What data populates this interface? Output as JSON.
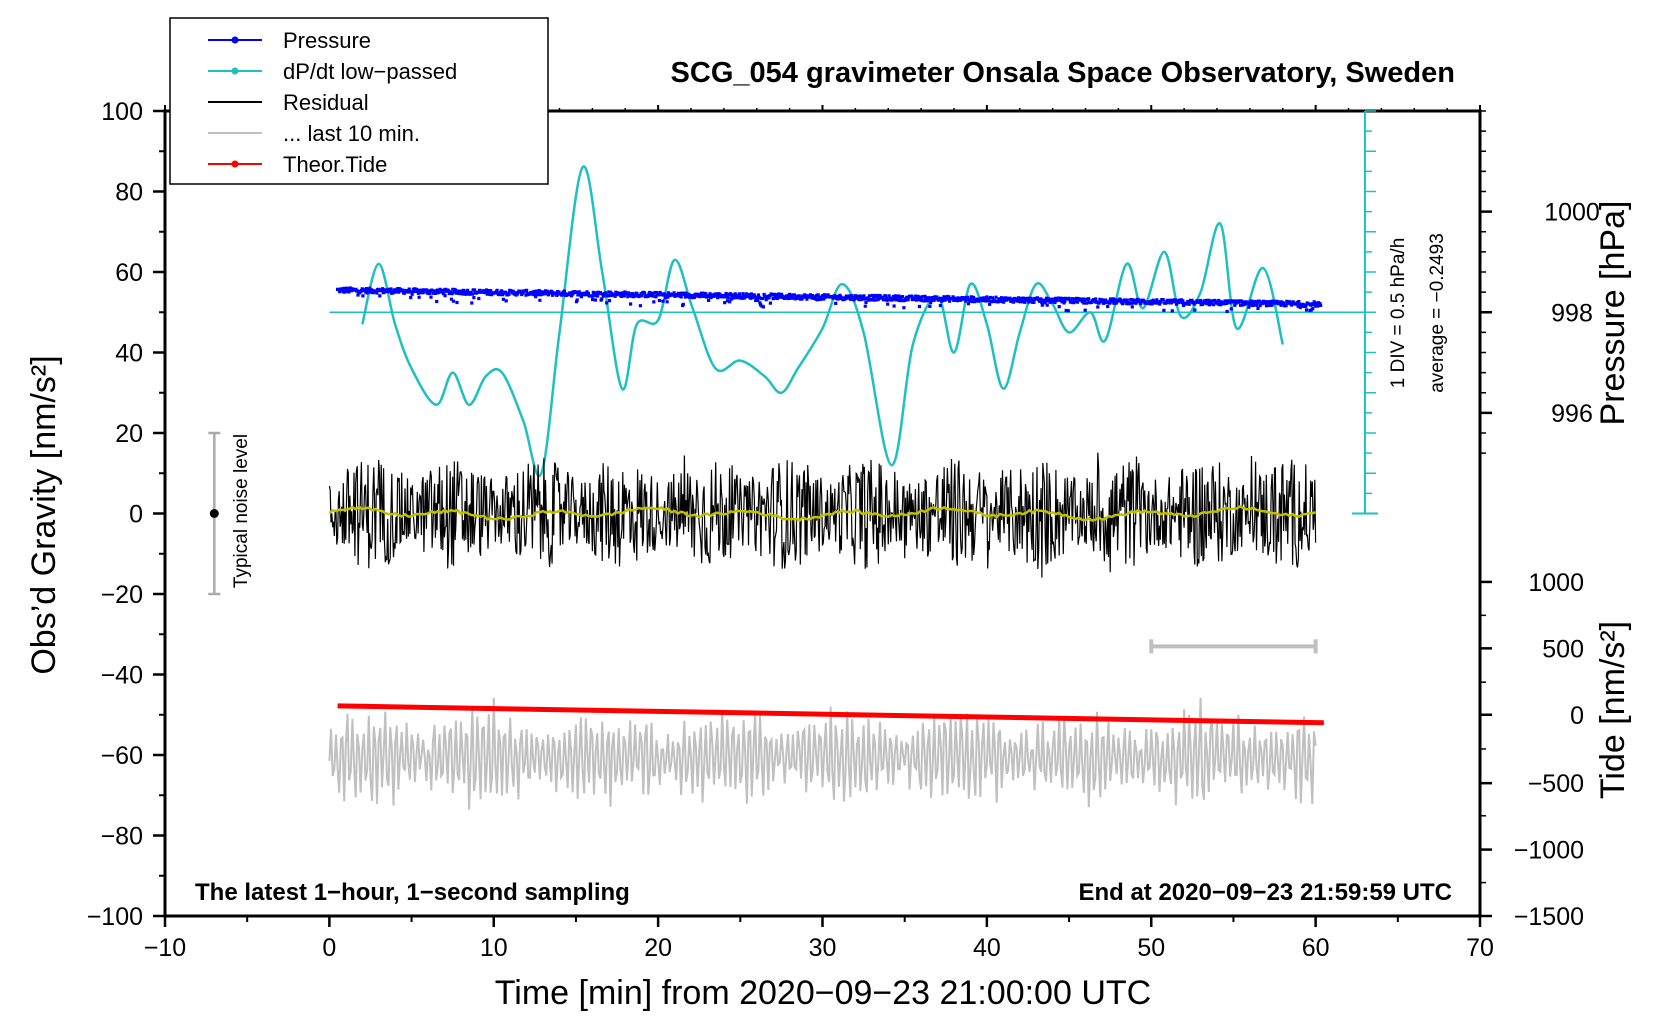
{
  "chart_data": {
    "type": "line",
    "title": "SCG_054 gravimeter Onsala Space Observatory, Sweden",
    "xlabel_prefix": "Time [min] from ",
    "x_reference": "2020−09−23 21:00:00 UTC",
    "ylabel_left": "Obs’d Gravity [nm/s²]",
    "ylabel_pressure": "Pressure [hPa]",
    "ylabel_tide": "Tide [nm/s²]",
    "xlim": [
      -10,
      70
    ],
    "ylim": [
      -100,
      100
    ],
    "x_ticks": [
      -10,
      0,
      10,
      20,
      30,
      40,
      50,
      60,
      70
    ],
    "x_tick_labels": [
      "−10",
      "0",
      "10",
      "20",
      "30",
      "40",
      "50",
      "60",
      "70"
    ],
    "y_ticks": [
      -100,
      -80,
      -60,
      -40,
      -20,
      0,
      20,
      40,
      60,
      80,
      100
    ],
    "y_tick_labels": [
      "−100",
      "−80",
      "−60",
      "−40",
      "−20",
      "0",
      "20",
      "40",
      "60",
      "80",
      "100"
    ],
    "pressure_ticks": [
      {
        "value": 996,
        "label": "996",
        "gravity": 25
      },
      {
        "value": 998,
        "label": "998",
        "gravity": 50
      },
      {
        "value": 1000,
        "label": "1000",
        "gravity": 75
      }
    ],
    "tide_ticks": [
      {
        "value": 1000,
        "label": "1000",
        "gravity": -17
      },
      {
        "value": 500,
        "label": "500",
        "gravity": -33.5
      },
      {
        "value": 0,
        "label": "0",
        "gravity": -50
      },
      {
        "value": -500,
        "label": "−500",
        "gravity": -67
      },
      {
        "value": -1000,
        "label": "−1000",
        "gravity": -83.5
      },
      {
        "value": -1500,
        "label": "−1500",
        "gravity": -100
      }
    ],
    "dpdt_scale": {
      "label": "1 DIV = 0.5 hPa/h",
      "average": "average = −0.2493",
      "x": 63,
      "y_top": 100,
      "y_bottom": 0,
      "minor_step": 5,
      "major_step": 10
    },
    "noise_bar": {
      "label": "Typical noise level",
      "x": -7,
      "center": 0,
      "half_range": 20
    },
    "last10_bar": {
      "x0": 50,
      "x1": 60,
      "y": -33
    },
    "notes": {
      "left": "The latest 1−hour, 1−second sampling",
      "right": "End at 2020−09−23 21:59:59 UTC"
    },
    "legend": [
      {
        "label": "Pressure",
        "color": "#0000ff",
        "marker": true
      },
      {
        "label": "dP/dt low−passed",
        "color": "#1ec0c0",
        "marker": true
      },
      {
        "label": "Residual",
        "color": "#000000",
        "marker": false
      },
      {
        "label": "... last 10 min.",
        "color": "#c0c0c0",
        "marker": false
      },
      {
        "label": "Theor.Tide",
        "color": "#ff0000",
        "marker": true
      }
    ],
    "series": [
      {
        "name": "Pressure",
        "color": "#0000ff",
        "x_start": 0.5,
        "x_end": 60.3,
        "y_start": 55.5,
        "y_end": 52.0
      },
      {
        "name": "dP/dt low−passed",
        "color": "#1ec0c0",
        "baseline": 50,
        "x": [
          2,
          3,
          4,
          5,
          6.5,
          7.5,
          8.5,
          9.5,
          10.5,
          11.8,
          12.9,
          14,
          15.4,
          16.6,
          17.8,
          18.7,
          20,
          21,
          22.1,
          23.5,
          25,
          26.5,
          27.5,
          28.5,
          30,
          31.2,
          32.5,
          34.2,
          35.5,
          37,
          38,
          39,
          40,
          41,
          42,
          43,
          44,
          45,
          46.3,
          47.2,
          48.5,
          49.5,
          50.8,
          51.8,
          53,
          54.2,
          55.2,
          56.8,
          58
        ],
        "y": [
          47,
          62,
          47,
          36,
          27,
          35,
          27,
          34,
          35,
          23,
          10,
          45,
          86,
          60,
          31,
          47,
          48,
          63,
          51,
          36,
          38,
          34,
          30,
          36,
          46,
          57,
          45,
          12,
          42,
          54,
          40,
          57,
          47,
          31,
          45,
          57,
          52,
          45,
          50,
          43,
          62,
          51,
          65,
          49,
          55,
          72,
          46,
          61,
          42
        ]
      },
      {
        "name": "Residual",
        "color": "#000000",
        "x_start": 0,
        "x_end": 60,
        "y_center": 0,
        "amplitude": 14
      },
      {
        "name": "Residual smoothed",
        "color": "#c0c000",
        "x_start": 0,
        "x_end": 60,
        "y_center": 0
      },
      {
        "name": "... last 10 min.",
        "color": "#c0c0c0",
        "x_start": 0,
        "x_end": 60,
        "y_center": -60.5,
        "amplitude": 12
      },
      {
        "name": "Theor.Tide",
        "color": "#ff0000",
        "x_start": 0.5,
        "x_end": 60.5,
        "y_start": -47.8,
        "y_end": -52.0
      }
    ]
  }
}
